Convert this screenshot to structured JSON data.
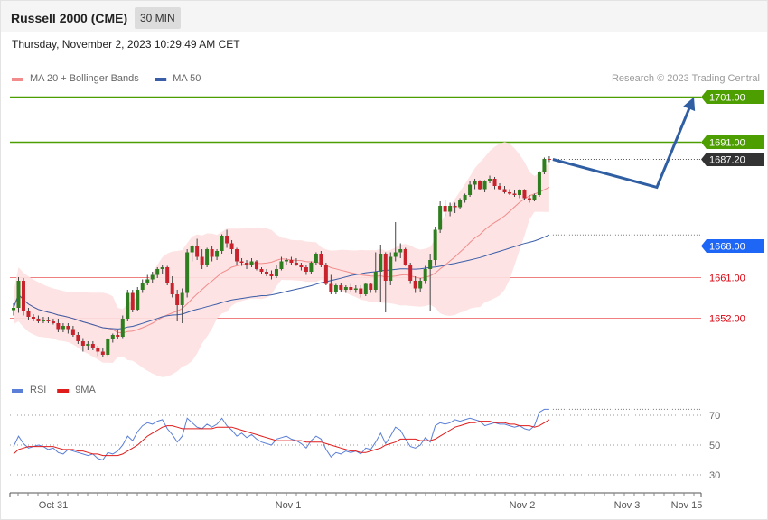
{
  "header": {
    "title": "Russell 2000 (CME)",
    "timeframe": "30 MIN",
    "timestamp": "Thursday, November 2, 2023 10:29:49 AM CET"
  },
  "copyright": "Research © 2023 Trading Central",
  "colors": {
    "resistance": "#4d9e00",
    "current": "#333333",
    "pivot": "#1e66f5",
    "support": "#d9000d",
    "support_line": "#f08080",
    "bull_candle": "#2e7d1e",
    "bear_candle": "#c8232c",
    "ma20": "#f28b8b",
    "ma50": "#3a5da8",
    "band_fill": "#fde0e0",
    "forecast": "#2f5ea3",
    "rsi": "#5b7fd6",
    "rsi_ma": "#e01b1b"
  },
  "chart_data": [
    {
      "type": "candlestick",
      "title": "Russell 2000 (CME)",
      "timeframe": "30 MIN",
      "y_range": [
        1644.1,
        1704.1
      ],
      "x_labels": [
        "Oct 31",
        "Nov 1",
        "Nov 2",
        "Nov 3",
        "Nov 15"
      ],
      "legend": [
        {
          "name": "MA 20 + Bollinger Bands",
          "color": "#f28b8b"
        },
        {
          "name": "MA 50",
          "color": "#3a5da8"
        }
      ],
      "levels": [
        {
          "label": "1701.00",
          "value": 1701.0,
          "kind": "resistance"
        },
        {
          "label": "1691.00",
          "value": 1691.0,
          "kind": "resistance"
        },
        {
          "label": "1687.20",
          "value": 1687.2,
          "kind": "current"
        },
        {
          "label": "1668.00",
          "value": 1668.0,
          "kind": "pivot"
        },
        {
          "label": "1661.00",
          "value": 1661.0,
          "kind": "support"
        },
        {
          "label": "1652.00",
          "value": 1652.0,
          "kind": "support"
        }
      ],
      "candles": [
        [
          1653.8,
          1655.3,
          1652.6,
          1654.3
        ],
        [
          1654.3,
          1661.1,
          1653.2,
          1660.3
        ],
        [
          1660.3,
          1660.9,
          1652.6,
          1653.6
        ],
        [
          1653.6,
          1654.3,
          1651.6,
          1652.3
        ],
        [
          1652.3,
          1652.9,
          1651.3,
          1651.9
        ],
        [
          1651.9,
          1652.6,
          1650.9,
          1651.3
        ],
        [
          1651.3,
          1652.3,
          1650.9,
          1651.6
        ],
        [
          1651.6,
          1652.3,
          1650.9,
          1651.3
        ],
        [
          1651.3,
          1651.9,
          1650.6,
          1650.9
        ],
        [
          1650.9,
          1651.9,
          1648.9,
          1649.6
        ],
        [
          1649.6,
          1650.9,
          1648.9,
          1650.3
        ],
        [
          1650.3,
          1650.9,
          1648.6,
          1649.6
        ],
        [
          1649.6,
          1650.3,
          1647.9,
          1648.3
        ],
        [
          1648.3,
          1648.9,
          1646.3,
          1646.9
        ],
        [
          1646.9,
          1647.6,
          1644.6,
          1645.9
        ],
        [
          1645.9,
          1646.9,
          1644.9,
          1646.3
        ],
        [
          1646.3,
          1646.9,
          1644.9,
          1645.3
        ],
        [
          1645.3,
          1645.9,
          1643.6,
          1644.6
        ],
        [
          1644.6,
          1645.3,
          1643.3,
          1643.9
        ],
        [
          1643.9,
          1647.6,
          1643.6,
          1647.3
        ],
        [
          1647.3,
          1648.6,
          1646.6,
          1648.3
        ],
        [
          1648.3,
          1649.3,
          1647.3,
          1647.9
        ],
        [
          1647.9,
          1652.6,
          1647.6,
          1651.9
        ],
        [
          1651.9,
          1658.3,
          1651.3,
          1657.6
        ],
        [
          1657.6,
          1658.3,
          1653.3,
          1653.9
        ],
        [
          1653.9,
          1658.9,
          1653.6,
          1658.3
        ],
        [
          1658.3,
          1660.6,
          1657.6,
          1659.9
        ],
        [
          1659.9,
          1661.6,
          1659.3,
          1660.6
        ],
        [
          1660.6,
          1662.3,
          1659.9,
          1661.6
        ],
        [
          1661.6,
          1663.3,
          1660.9,
          1662.9
        ],
        [
          1662.9,
          1663.9,
          1661.9,
          1663.3
        ],
        [
          1663.3,
          1663.6,
          1659.3,
          1659.9
        ],
        [
          1659.9,
          1661.3,
          1656.6,
          1657.3
        ],
        [
          1657.3,
          1658.3,
          1651.3,
          1654.9
        ],
        [
          1654.9,
          1658.6,
          1650.9,
          1657.6
        ],
        [
          1657.6,
          1667.3,
          1656.6,
          1666.6
        ],
        [
          1666.6,
          1668.3,
          1664.6,
          1667.9
        ],
        [
          1667.9,
          1669.6,
          1664.9,
          1665.6
        ],
        [
          1665.6,
          1667.3,
          1662.9,
          1663.9
        ],
        [
          1663.9,
          1667.6,
          1663.3,
          1667.3
        ],
        [
          1667.3,
          1667.9,
          1664.6,
          1665.6
        ],
        [
          1665.6,
          1667.3,
          1664.9,
          1666.9
        ],
        [
          1666.9,
          1670.6,
          1666.3,
          1670.3
        ],
        [
          1670.3,
          1671.6,
          1667.6,
          1668.6
        ],
        [
          1668.6,
          1669.3,
          1666.3,
          1667.3
        ],
        [
          1667.3,
          1667.6,
          1663.9,
          1664.6
        ],
        [
          1664.6,
          1665.3,
          1663.6,
          1664.3
        ],
        [
          1664.3,
          1664.9,
          1662.9,
          1663.9
        ],
        [
          1663.9,
          1665.3,
          1663.3,
          1664.6
        ],
        [
          1664.6,
          1664.9,
          1662.6,
          1662.9
        ],
        [
          1662.9,
          1663.3,
          1661.9,
          1662.3
        ],
        [
          1662.3,
          1662.9,
          1661.3,
          1661.9
        ],
        [
          1661.9,
          1662.6,
          1660.6,
          1661.3
        ],
        [
          1661.3,
          1663.9,
          1660.9,
          1662.9
        ],
        [
          1662.9,
          1665.6,
          1662.6,
          1664.6
        ],
        [
          1664.6,
          1665.3,
          1663.9,
          1664.9
        ],
        [
          1664.9,
          1665.6,
          1663.9,
          1664.3
        ],
        [
          1664.3,
          1665.3,
          1663.6,
          1663.9
        ],
        [
          1663.9,
          1664.3,
          1662.6,
          1663.3
        ],
        [
          1663.3,
          1663.9,
          1661.6,
          1662.3
        ],
        [
          1662.3,
          1664.6,
          1661.9,
          1664.3
        ],
        [
          1664.3,
          1666.6,
          1663.9,
          1666.3
        ],
        [
          1666.3,
          1666.9,
          1663.3,
          1663.9
        ],
        [
          1663.9,
          1664.3,
          1659.3,
          1659.6
        ],
        [
          1659.6,
          1661.6,
          1657.3,
          1657.9
        ],
        [
          1657.9,
          1659.6,
          1657.3,
          1659.3
        ],
        [
          1659.3,
          1659.9,
          1657.9,
          1658.3
        ],
        [
          1658.3,
          1659.3,
          1657.6,
          1658.9
        ],
        [
          1658.9,
          1659.6,
          1657.9,
          1658.3
        ],
        [
          1658.3,
          1659.3,
          1657.6,
          1658.6
        ],
        [
          1658.6,
          1659.3,
          1656.6,
          1657.3
        ],
        [
          1657.3,
          1659.9,
          1656.9,
          1659.6
        ],
        [
          1659.6,
          1659.9,
          1657.6,
          1658.3
        ],
        [
          1658.3,
          1666.6,
          1657.6,
          1662.3
        ],
        [
          1662.3,
          1668.3,
          1655.6,
          1666.3
        ],
        [
          1666.3,
          1666.6,
          1653.3,
          1660.3
        ],
        [
          1660.3,
          1666.6,
          1659.3,
          1665.6
        ],
        [
          1665.6,
          1673.3,
          1664.6,
          1666.6
        ],
        [
          1666.6,
          1668.6,
          1665.3,
          1667.3
        ],
        [
          1667.3,
          1667.6,
          1663.6,
          1663.9
        ],
        [
          1663.9,
          1664.3,
          1659.6,
          1660.3
        ],
        [
          1660.3,
          1661.3,
          1657.6,
          1658.6
        ],
        [
          1658.6,
          1660.9,
          1657.9,
          1660.3
        ],
        [
          1660.3,
          1663.6,
          1659.6,
          1662.9
        ],
        [
          1662.9,
          1666.3,
          1653.6,
          1664.9
        ],
        [
          1664.9,
          1672.3,
          1663.6,
          1671.6
        ],
        [
          1671.6,
          1677.9,
          1670.9,
          1676.9
        ],
        [
          1676.9,
          1678.3,
          1674.6,
          1675.6
        ],
        [
          1675.6,
          1677.6,
          1674.6,
          1676.9
        ],
        [
          1676.9,
          1677.6,
          1675.3,
          1676.6
        ],
        [
          1676.6,
          1678.6,
          1676.3,
          1678.3
        ],
        [
          1678.3,
          1679.6,
          1677.6,
          1679.3
        ],
        [
          1679.3,
          1682.3,
          1678.9,
          1681.6
        ],
        [
          1681.6,
          1682.9,
          1680.6,
          1682.3
        ],
        [
          1682.3,
          1682.6,
          1680.3,
          1680.6
        ],
        [
          1680.6,
          1682.6,
          1679.9,
          1682.3
        ],
        [
          1682.3,
          1683.6,
          1681.9,
          1682.9
        ],
        [
          1682.9,
          1683.3,
          1680.6,
          1681.3
        ],
        [
          1681.3,
          1681.9,
          1680.3,
          1680.6
        ],
        [
          1680.6,
          1681.3,
          1679.6,
          1679.9
        ],
        [
          1679.9,
          1680.6,
          1679.3,
          1679.6
        ],
        [
          1679.6,
          1680.3,
          1678.9,
          1679.3
        ],
        [
          1679.3,
          1680.6,
          1678.6,
          1680.3
        ],
        [
          1680.3,
          1680.6,
          1678.3,
          1678.6
        ],
        [
          1678.6,
          1679.3,
          1677.6,
          1678.3
        ],
        [
          1678.3,
          1679.6,
          1677.9,
          1679.3
        ],
        [
          1679.3,
          1684.6,
          1678.9,
          1684.3
        ],
        [
          1684.3,
          1687.6,
          1683.9,
          1687.3
        ],
        [
          1687.3,
          1687.9,
          1686.6,
          1687.2
        ]
      ],
      "forecast_path": [
        1687.2,
        1681.0,
        1701.0
      ]
    },
    {
      "type": "line",
      "y_ticks": [
        70,
        50,
        30
      ],
      "x_labels": [
        "Oct 31",
        "Nov 1",
        "Nov 2",
        "Nov 3",
        "Nov 15"
      ],
      "legend": [
        {
          "name": "RSI",
          "color": "#5b7fd6"
        },
        {
          "name": "9MA",
          "color": "#e01b1b"
        }
      ],
      "series": [
        {
          "name": "RSI",
          "values": [
            49,
            56,
            51,
            48,
            49,
            50,
            49,
            47,
            48,
            45,
            44,
            47,
            46,
            45,
            44,
            43,
            44,
            41,
            40,
            45,
            44,
            46,
            50,
            56,
            53,
            59,
            63,
            65,
            64,
            66,
            67,
            61,
            57,
            52,
            56,
            68,
            65,
            62,
            61,
            64,
            62,
            64,
            68,
            63,
            60,
            56,
            58,
            55,
            57,
            54,
            52,
            51,
            50,
            54,
            55,
            56,
            54,
            53,
            51,
            48,
            53,
            56,
            54,
            47,
            42,
            45,
            44,
            46,
            45,
            46,
            44,
            48,
            47,
            52,
            58,
            51,
            56,
            62,
            60,
            54,
            49,
            48,
            50,
            55,
            52,
            63,
            65,
            64,
            65,
            67,
            66,
            67,
            68,
            67,
            66,
            63,
            64,
            65,
            64,
            64,
            63,
            62,
            63,
            61,
            60,
            63,
            72,
            74,
            74
          ]
        },
        {
          "name": "9MA",
          "values": [
            44,
            47,
            48,
            49,
            49,
            49,
            49,
            49,
            49,
            48,
            47,
            47,
            47,
            46,
            46,
            45,
            44,
            44,
            43,
            43,
            43,
            43,
            44,
            46,
            48,
            50,
            53,
            56,
            58,
            60,
            62,
            63,
            63,
            62,
            61,
            61,
            61,
            61,
            61,
            61,
            61,
            62,
            62,
            62,
            62,
            61,
            60,
            59,
            58,
            57,
            56,
            55,
            54,
            53,
            53,
            53,
            53,
            53,
            53,
            52,
            52,
            52,
            52,
            51,
            50,
            49,
            48,
            47,
            46,
            46,
            45,
            45,
            46,
            47,
            48,
            50,
            51,
            52,
            54,
            54,
            54,
            54,
            53,
            53,
            53,
            54,
            56,
            58,
            60,
            62,
            63,
            64,
            65,
            65,
            66,
            66,
            66,
            65,
            65,
            65,
            64,
            64,
            63,
            63,
            63,
            62,
            63,
            65,
            67
          ]
        }
      ]
    }
  ]
}
